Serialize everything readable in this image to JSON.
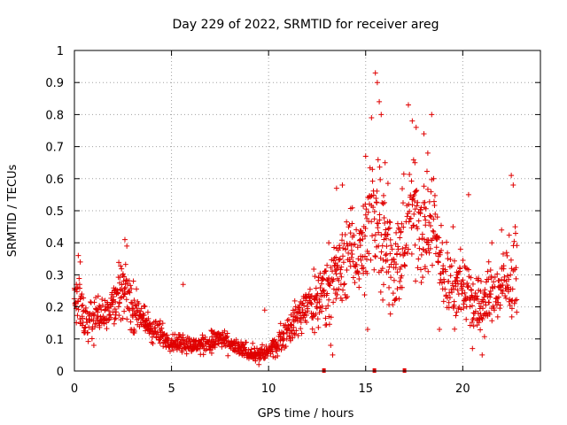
{
  "chart_data": {
    "type": "scatter",
    "title": "Day 229 of 2022, SRMTID for receiver areg",
    "xlabel": "GPS time / hours",
    "ylabel": "SRMTID / TECUs",
    "xlim": [
      0,
      24
    ],
    "ylim": [
      0,
      1
    ],
    "xticks": [
      0,
      5,
      10,
      15,
      20
    ],
    "yticks": [
      0,
      0.1,
      0.2,
      0.3,
      0.4,
      0.5,
      0.6,
      0.7,
      0.8,
      0.9,
      1
    ],
    "grid": true,
    "marker": "+",
    "color": "#e00000",
    "envelope": {
      "x": [
        0.0,
        0.3,
        0.6,
        1.0,
        1.5,
        2.0,
        2.5,
        3.0,
        3.5,
        4.0,
        4.5,
        5.0,
        5.5,
        6.0,
        6.5,
        7.0,
        7.5,
        8.0,
        8.5,
        9.0,
        9.5,
        10.0,
        10.5,
        11.0,
        11.5,
        12.0,
        12.5,
        13.0,
        13.5,
        14.0,
        14.5,
        15.0,
        15.5,
        16.0,
        16.5,
        17.0,
        17.5,
        18.0,
        18.5,
        19.0,
        19.5,
        20.0,
        20.5,
        21.0,
        21.5,
        22.0,
        22.5,
        22.8
      ],
      "center": [
        0.22,
        0.2,
        0.15,
        0.17,
        0.18,
        0.22,
        0.26,
        0.2,
        0.16,
        0.13,
        0.11,
        0.09,
        0.09,
        0.08,
        0.08,
        0.09,
        0.1,
        0.08,
        0.07,
        0.06,
        0.05,
        0.06,
        0.09,
        0.13,
        0.17,
        0.2,
        0.22,
        0.27,
        0.3,
        0.35,
        0.38,
        0.4,
        0.5,
        0.45,
        0.3,
        0.42,
        0.5,
        0.45,
        0.45,
        0.3,
        0.25,
        0.28,
        0.22,
        0.2,
        0.25,
        0.25,
        0.28,
        0.3
      ],
      "spread": [
        0.05,
        0.08,
        0.04,
        0.04,
        0.05,
        0.06,
        0.07,
        0.06,
        0.04,
        0.04,
        0.03,
        0.02,
        0.03,
        0.02,
        0.02,
        0.03,
        0.03,
        0.02,
        0.02,
        0.02,
        0.02,
        0.02,
        0.03,
        0.04,
        0.05,
        0.06,
        0.08,
        0.08,
        0.1,
        0.1,
        0.1,
        0.14,
        0.18,
        0.16,
        0.1,
        0.14,
        0.16,
        0.14,
        0.12,
        0.1,
        0.08,
        0.08,
        0.08,
        0.07,
        0.08,
        0.08,
        0.1,
        0.1
      ]
    },
    "points": [
      [
        0.1,
        0.27
      ],
      [
        0.2,
        0.36
      ],
      [
        0.3,
        0.34
      ],
      [
        0.5,
        0.12
      ],
      [
        1.0,
        0.08
      ],
      [
        2.6,
        0.41
      ],
      [
        2.7,
        0.39
      ],
      [
        5.6,
        0.27
      ],
      [
        9.5,
        0.02
      ],
      [
        9.8,
        0.19
      ],
      [
        13.1,
        0.4
      ],
      [
        13.2,
        0.08
      ],
      [
        13.3,
        0.05
      ],
      [
        13.5,
        0.57
      ],
      [
        13.8,
        0.58
      ],
      [
        14.3,
        0.46
      ],
      [
        15.0,
        0.67
      ],
      [
        15.1,
        0.13
      ],
      [
        15.3,
        0.79
      ],
      [
        15.5,
        0.93
      ],
      [
        15.6,
        0.9
      ],
      [
        15.7,
        0.84
      ],
      [
        15.8,
        0.8
      ],
      [
        16.0,
        0.65
      ],
      [
        16.2,
        0.26
      ],
      [
        16.5,
        0.22
      ],
      [
        17.0,
        0.33
      ],
      [
        17.2,
        0.83
      ],
      [
        17.4,
        0.78
      ],
      [
        17.6,
        0.76
      ],
      [
        18.0,
        0.74
      ],
      [
        18.2,
        0.68
      ],
      [
        18.4,
        0.8
      ],
      [
        18.5,
        0.6
      ],
      [
        18.8,
        0.13
      ],
      [
        19.5,
        0.45
      ],
      [
        20.3,
        0.55
      ],
      [
        20.5,
        0.07
      ],
      [
        21.0,
        0.05
      ],
      [
        21.5,
        0.4
      ],
      [
        22.0,
        0.44
      ],
      [
        22.5,
        0.61
      ],
      [
        22.6,
        0.58
      ],
      [
        22.7,
        0.45
      ]
    ],
    "gap_markers_x": [
      12.85,
      15.45,
      17.0
    ]
  }
}
